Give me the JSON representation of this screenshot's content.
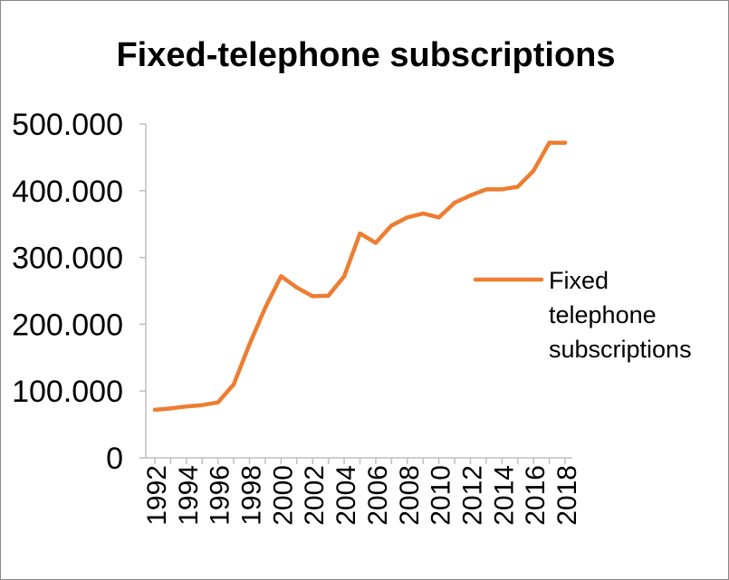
{
  "chart_data": {
    "type": "line",
    "title": "Fixed-telephone subscriptions",
    "x": [
      1992,
      1993,
      1994,
      1995,
      1996,
      1997,
      1998,
      1999,
      2000,
      2001,
      2002,
      2003,
      2004,
      2005,
      2006,
      2007,
      2008,
      2009,
      2010,
      2011,
      2012,
      2013,
      2014,
      2015,
      2016,
      2017,
      2018
    ],
    "x_tick_labels": [
      "1992",
      "1994",
      "1996",
      "1998",
      "2000",
      "2002",
      "2004",
      "2006",
      "2008",
      "2010",
      "2012",
      "2014",
      "2016",
      "2018"
    ],
    "y_tick_labels": [
      "0",
      "100.000",
      "200.000",
      "300.000",
      "400.000",
      "500.000"
    ],
    "ylim": [
      0,
      500000
    ],
    "grid": false,
    "legend_position": "right",
    "series": [
      {
        "name": "Fixed telephone subscriptions",
        "color": "#ED7D31",
        "values": [
          72000,
          74000,
          77000,
          79000,
          83000,
          110000,
          170000,
          225000,
          272000,
          255000,
          242000,
          243000,
          272000,
          336000,
          322000,
          348000,
          360000,
          366000,
          360000,
          382000,
          393000,
          402000,
          402000,
          406000,
          430000,
          472000,
          472000
        ]
      }
    ]
  }
}
